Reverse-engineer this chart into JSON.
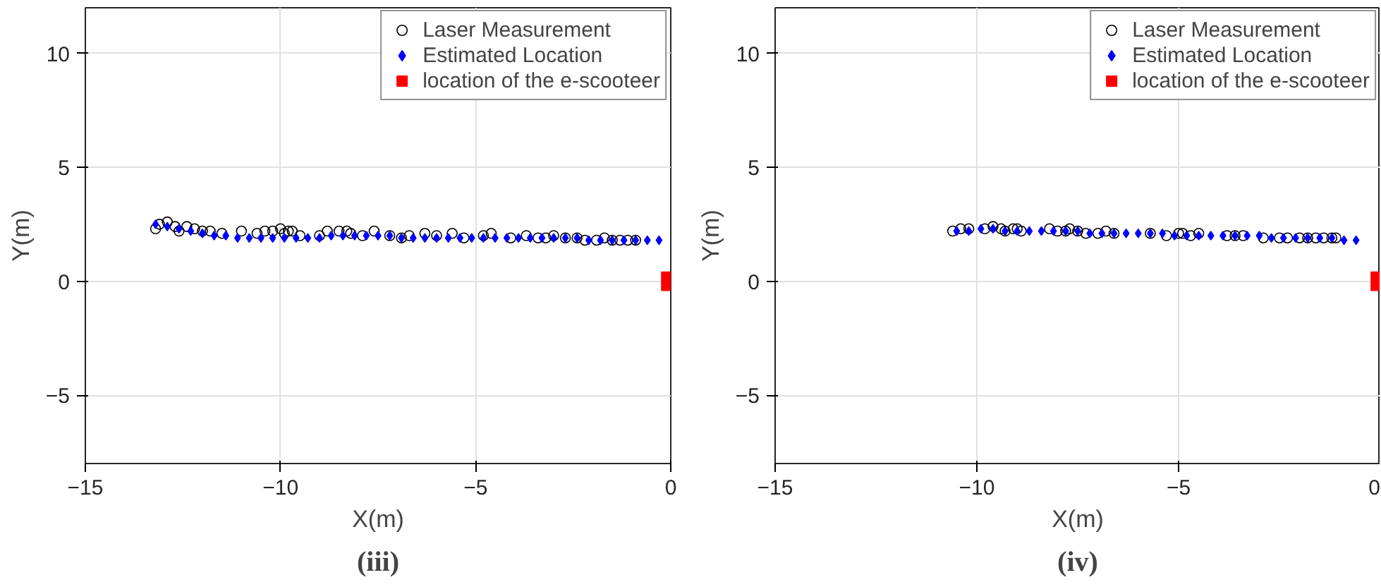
{
  "chart_data": [
    {
      "type": "scatter",
      "title": "(iii)",
      "xlabel": "X(m)",
      "ylabel": "Y(m)",
      "xlim": [
        -15,
        0
      ],
      "ylim": [
        -8,
        12
      ],
      "xticks": [
        -15,
        -10,
        -5,
        0
      ],
      "yticks": [
        -5,
        0,
        5,
        10
      ],
      "grid": true,
      "legend": "top right",
      "series": [
        {
          "name": "Laser Measurement",
          "color": "#000000",
          "marker": "circle",
          "x": [
            -13.2,
            -13.1,
            -12.9,
            -12.7,
            -12.6,
            -12.4,
            -12.2,
            -12.0,
            -11.8,
            -11.5,
            -11.0,
            -10.6,
            -10.4,
            -10.2,
            -10.0,
            -9.9,
            -9.8,
            -9.7,
            -9.5,
            -9.0,
            -8.8,
            -8.5,
            -8.3,
            -8.2,
            -7.9,
            -7.6,
            -7.2,
            -6.9,
            -6.7,
            -6.3,
            -6.0,
            -5.6,
            -5.3,
            -4.8,
            -4.6,
            -4.1,
            -3.7,
            -3.4,
            -3.2,
            -3.0,
            -2.7,
            -2.4,
            -2.2,
            -1.9,
            -1.7,
            -1.5,
            -1.3,
            -1.1,
            -0.9
          ],
          "values": [
            2.3,
            2.5,
            2.6,
            2.4,
            2.2,
            2.4,
            2.3,
            2.2,
            2.2,
            2.1,
            2.2,
            2.1,
            2.2,
            2.2,
            2.3,
            2.1,
            2.2,
            2.2,
            2.0,
            2.0,
            2.2,
            2.2,
            2.2,
            2.1,
            2.0,
            2.2,
            2.0,
            1.9,
            2.0,
            2.1,
            2.0,
            2.1,
            1.9,
            2.0,
            2.1,
            1.9,
            2.0,
            1.9,
            1.9,
            2.0,
            1.9,
            1.9,
            1.8,
            1.8,
            1.9,
            1.8,
            1.8,
            1.8,
            1.8
          ]
        },
        {
          "name": "Estimated Location",
          "color": "#0000ff",
          "marker": "diamond",
          "x": [
            -13.2,
            -12.9,
            -12.6,
            -12.3,
            -12.0,
            -11.7,
            -11.4,
            -11.1,
            -10.8,
            -10.5,
            -10.2,
            -9.9,
            -9.6,
            -9.3,
            -9.0,
            -8.7,
            -8.4,
            -8.1,
            -7.8,
            -7.5,
            -7.2,
            -6.9,
            -6.6,
            -6.3,
            -6.0,
            -5.7,
            -5.4,
            -5.1,
            -4.8,
            -4.5,
            -4.2,
            -3.9,
            -3.6,
            -3.3,
            -3.0,
            -2.7,
            -2.4,
            -2.1,
            -1.8,
            -1.5,
            -1.2,
            -0.9,
            -0.6,
            -0.3
          ],
          "values": [
            2.5,
            2.4,
            2.3,
            2.2,
            2.1,
            2.0,
            2.0,
            1.9,
            1.9,
            1.9,
            1.9,
            1.9,
            1.9,
            1.9,
            1.9,
            2.0,
            2.0,
            2.0,
            2.0,
            2.0,
            2.0,
            1.9,
            1.9,
            1.9,
            1.9,
            1.9,
            1.9,
            1.9,
            1.9,
            1.9,
            1.9,
            1.9,
            1.9,
            1.9,
            1.9,
            1.9,
            1.9,
            1.8,
            1.8,
            1.8,
            1.8,
            1.8,
            1.8,
            1.8
          ]
        },
        {
          "name": "location of the e-scooteer",
          "color": "#ff0000",
          "marker": "square",
          "x": [
            0
          ],
          "values": [
            0
          ]
        }
      ]
    },
    {
      "type": "scatter",
      "title": "(iv)",
      "xlabel": "X(m)",
      "ylabel": "Y(m)",
      "xlim": [
        -15,
        0
      ],
      "ylim": [
        -8,
        12
      ],
      "xticks": [
        -15,
        -10,
        -5,
        0
      ],
      "yticks": [
        -5,
        0,
        5,
        10
      ],
      "grid": true,
      "legend": "top right",
      "series": [
        {
          "name": "Laser Measurement",
          "color": "#000000",
          "marker": "circle",
          "x": [
            -10.6,
            -10.4,
            -10.2,
            -9.8,
            -9.6,
            -9.4,
            -9.3,
            -9.1,
            -9.0,
            -8.9,
            -8.2,
            -8.0,
            -7.8,
            -7.7,
            -7.5,
            -7.3,
            -7.0,
            -6.8,
            -6.6,
            -5.7,
            -5.3,
            -5.0,
            -4.9,
            -4.7,
            -4.5,
            -3.8,
            -3.6,
            -3.4,
            -2.9,
            -2.5,
            -2.3,
            -2.0,
            -1.8,
            -1.6,
            -1.4,
            -1.2,
            -1.1
          ],
          "values": [
            2.2,
            2.3,
            2.3,
            2.3,
            2.4,
            2.3,
            2.2,
            2.3,
            2.3,
            2.2,
            2.3,
            2.2,
            2.2,
            2.3,
            2.2,
            2.1,
            2.1,
            2.2,
            2.1,
            2.1,
            2.0,
            2.1,
            2.1,
            2.0,
            2.1,
            2.0,
            2.0,
            2.0,
            1.9,
            1.9,
            1.9,
            1.9,
            1.9,
            1.9,
            1.9,
            1.9,
            1.9
          ]
        },
        {
          "name": "Estimated Location",
          "color": "#0000ff",
          "marker": "diamond",
          "x": [
            -10.5,
            -10.2,
            -9.9,
            -9.6,
            -9.3,
            -9.0,
            -8.7,
            -8.4,
            -8.1,
            -7.8,
            -7.5,
            -7.2,
            -6.9,
            -6.6,
            -6.3,
            -6.0,
            -5.7,
            -5.4,
            -5.1,
            -4.8,
            -4.5,
            -4.2,
            -3.9,
            -3.6,
            -3.3,
            -3.0,
            -2.7,
            -2.4,
            -2.1,
            -1.8,
            -1.5,
            -1.2,
            -0.9,
            -0.6
          ],
          "values": [
            2.2,
            2.2,
            2.3,
            2.3,
            2.2,
            2.2,
            2.2,
            2.2,
            2.2,
            2.2,
            2.2,
            2.1,
            2.1,
            2.1,
            2.1,
            2.1,
            2.1,
            2.1,
            2.0,
            2.0,
            2.0,
            2.0,
            2.0,
            2.0,
            2.0,
            2.0,
            1.9,
            1.9,
            1.9,
            1.9,
            1.9,
            1.9,
            1.8,
            1.8
          ]
        },
        {
          "name": "location of the e-scooteer",
          "color": "#ff0000",
          "marker": "square",
          "x": [
            0
          ],
          "values": [
            0
          ]
        }
      ]
    }
  ]
}
